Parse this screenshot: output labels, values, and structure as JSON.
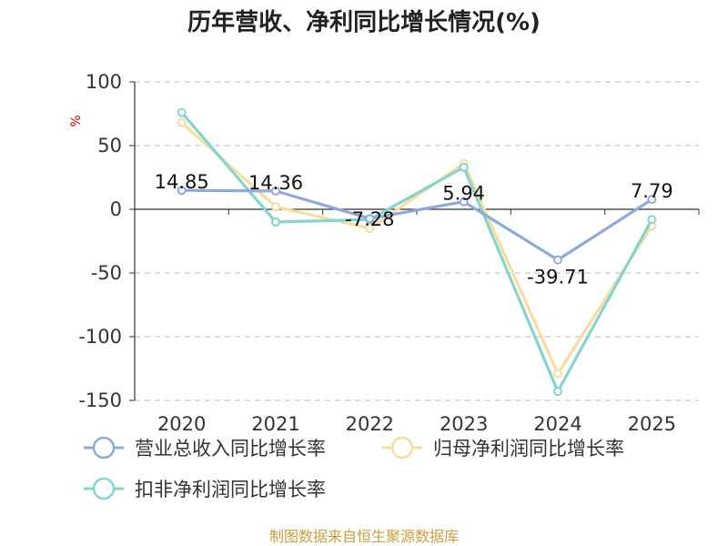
{
  "chart_data": {
    "type": "line",
    "title": "历年营收、净利同比增长情况(%)",
    "ylabel": "%",
    "xlabel": "",
    "categories": [
      "2020",
      "2021",
      "2022",
      "2023",
      "2024",
      "2025"
    ],
    "ylim": [
      -150,
      100
    ],
    "yticks": [
      100,
      50,
      0,
      -50,
      -100,
      -150
    ],
    "grid": true,
    "legend_position": "bottom",
    "series": [
      {
        "name": "营业总收入同比增长率",
        "color": "#8eaad6",
        "values": [
          14.85,
          14.36,
          -7.28,
          5.94,
          -39.71,
          7.79
        ],
        "labels": [
          "14.85",
          "14.36",
          "-7.28",
          "5.94",
          "-39.71",
          "7.79"
        ]
      },
      {
        "name": "归母净利润同比增长率",
        "color": "#f9dca0",
        "values": [
          68,
          2,
          -15,
          36,
          -129,
          -13
        ]
      },
      {
        "name": "扣非净利润同比增长率",
        "color": "#86d3d0",
        "values": [
          76,
          -10,
          -8,
          33,
          -143,
          -8
        ]
      }
    ]
  },
  "source": "制图数据来自恒生聚源数据库"
}
